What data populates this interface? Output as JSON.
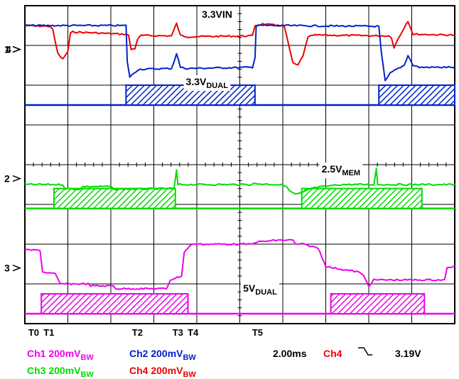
{
  "chart_data": {
    "type": "line",
    "title": "",
    "xlabel": "",
    "ylabel": "",
    "grid": true,
    "timebase": "2.00ms",
    "trigger": {
      "source": "Ch4",
      "slope": "falling",
      "level": "3.19V"
    },
    "divisions": {
      "x": 10,
      "y": 8
    },
    "channels": [
      {
        "id": "Ch1",
        "label": "Ch1",
        "scale": "200mV",
        "bw": "BW",
        "color": "#ee00ee"
      },
      {
        "id": "Ch2",
        "label": "Ch2",
        "scale": "200mV",
        "bw": "BW",
        "color": "#0022cc"
      },
      {
        "id": "Ch3",
        "label": "Ch3",
        "scale": "200mV",
        "bw": "BW",
        "color": "#00dd00"
      },
      {
        "id": "Ch4",
        "label": "Ch4",
        "scale": "200mV",
        "bw": "BW",
        "color": "#ee0000"
      }
    ],
    "ground_markers": [
      {
        "label": "1",
        "color": "#ee0000",
        "div": 1.1
      },
      {
        "label": "4",
        "color": "#0022cc",
        "div": 1.1
      },
      {
        "label": "2",
        "color": "#00aa00",
        "div": 4.35
      },
      {
        "label": "3",
        "color": "#ee00ee",
        "div": 6.6
      }
    ],
    "annotations": [
      {
        "base": "3.3VIN",
        "sub": "",
        "x_div": 7.6,
        "y_div": 0.3
      },
      {
        "base": "3.3V",
        "sub": "DUAL",
        "x_div": 7.2,
        "y_div": 2.0
      },
      {
        "base": "2.5V",
        "sub": "MEM",
        "x_div": 12.5,
        "y_div": 4.2
      },
      {
        "base": "5V",
        "sub": "DUAL",
        "x_div": 9.3,
        "y_div": 7.2
      }
    ],
    "time_markers": [
      {
        "label": "T0",
        "x_div": 0.35
      },
      {
        "label": "T1",
        "x_div": 0.95
      },
      {
        "label": "T2",
        "x_div": 4.45
      },
      {
        "label": "T3",
        "x_div": 6.05
      },
      {
        "label": "T4",
        "x_div": 6.65
      },
      {
        "label": "T5",
        "x_div": 9.2
      }
    ],
    "series": [
      {
        "id": "Ch4",
        "color": "#ee0000",
        "width": 2,
        "points": [
          [
            0,
            0.5
          ],
          [
            1.0,
            0.52
          ],
          [
            1.1,
            0.6
          ],
          [
            1.3,
            1.2
          ],
          [
            1.5,
            1.35
          ],
          [
            1.7,
            1.15
          ],
          [
            1.8,
            0.7
          ],
          [
            1.9,
            0.66
          ],
          [
            4.0,
            0.72
          ],
          [
            4.1,
            0.75
          ],
          [
            4.2,
            1.1
          ],
          [
            4.35,
            1.08
          ],
          [
            4.45,
            0.85
          ],
          [
            4.6,
            0.75
          ],
          [
            5.8,
            0.76
          ],
          [
            5.9,
            0.6
          ],
          [
            6.0,
            0.45
          ],
          [
            6.15,
            0.75
          ],
          [
            6.4,
            0.78
          ],
          [
            9.0,
            0.76
          ],
          [
            9.1,
            0.5
          ],
          [
            9.4,
            0.46
          ],
          [
            10.0,
            0.5
          ],
          [
            10.25,
            0.5
          ],
          [
            10.4,
            0.9
          ],
          [
            10.6,
            1.45
          ],
          [
            10.8,
            1.5
          ],
          [
            11.0,
            1.25
          ],
          [
            11.2,
            0.8
          ],
          [
            11.4,
            0.74
          ],
          [
            14.4,
            0.76
          ],
          [
            14.5,
            0.8
          ],
          [
            14.6,
            1.05
          ],
          [
            14.75,
            0.85
          ],
          [
            15.0,
            0.55
          ],
          [
            15.15,
            0.38
          ],
          [
            15.35,
            0.72
          ],
          [
            15.6,
            0.72
          ],
          [
            17.0,
            0.74
          ]
        ]
      },
      {
        "id": "Ch2",
        "color": "#0022cc",
        "width": 2,
        "points": [
          [
            0,
            0.5
          ],
          [
            4.0,
            0.5
          ],
          [
            4.05,
            1.4
          ],
          [
            4.15,
            1.8
          ],
          [
            4.3,
            1.7
          ],
          [
            4.5,
            1.6
          ],
          [
            5.8,
            1.58
          ],
          [
            5.9,
            1.4
          ],
          [
            6.0,
            1.2
          ],
          [
            6.15,
            1.55
          ],
          [
            6.4,
            1.58
          ],
          [
            9.0,
            1.55
          ],
          [
            9.1,
            1.3
          ],
          [
            9.15,
            0.5
          ],
          [
            10.0,
            0.5
          ],
          [
            14.0,
            0.52
          ],
          [
            14.1,
            1.2
          ],
          [
            14.25,
            1.9
          ],
          [
            14.45,
            1.7
          ],
          [
            14.7,
            1.6
          ],
          [
            15.0,
            1.5
          ],
          [
            15.15,
            1.25
          ],
          [
            15.35,
            1.5
          ],
          [
            15.6,
            1.55
          ],
          [
            17.0,
            1.55
          ]
        ]
      },
      {
        "id": "Ch3",
        "color": "#00dd00",
        "width": 2,
        "points": [
          [
            0,
            4.5
          ],
          [
            1.5,
            4.5
          ],
          [
            1.6,
            4.6
          ],
          [
            2.2,
            4.62
          ],
          [
            2.3,
            4.55
          ],
          [
            3.4,
            4.55
          ],
          [
            3.5,
            4.62
          ],
          [
            5.9,
            4.6
          ],
          [
            6.0,
            4.15
          ],
          [
            6.05,
            4.5
          ],
          [
            8.9,
            4.5
          ],
          [
            9.05,
            4.48
          ],
          [
            10.0,
            4.5
          ],
          [
            10.3,
            4.52
          ],
          [
            10.45,
            4.65
          ],
          [
            10.7,
            4.75
          ],
          [
            11.0,
            4.7
          ],
          [
            11.3,
            4.6
          ],
          [
            11.8,
            4.55
          ],
          [
            12.5,
            4.5
          ],
          [
            13.8,
            4.5
          ],
          [
            13.9,
            4.1
          ],
          [
            13.95,
            4.5
          ],
          [
            17.0,
            4.5
          ]
        ]
      },
      {
        "id": "Ch1",
        "color": "#ee00ee",
        "width": 2,
        "points": [
          [
            0,
            6.15
          ],
          [
            0.6,
            6.15
          ],
          [
            0.7,
            6.7
          ],
          [
            1.2,
            6.75
          ],
          [
            1.4,
            7.0
          ],
          [
            2.5,
            7.0
          ],
          [
            2.6,
            7.05
          ],
          [
            3.5,
            7.05
          ],
          [
            3.6,
            7.12
          ],
          [
            5.6,
            7.12
          ],
          [
            5.75,
            6.9
          ],
          [
            6.2,
            6.8
          ],
          [
            6.3,
            6.2
          ],
          [
            6.6,
            6.0
          ],
          [
            9.0,
            6.0
          ],
          [
            9.1,
            5.95
          ],
          [
            10.0,
            5.9
          ],
          [
            10.6,
            5.9
          ],
          [
            10.7,
            6.0
          ],
          [
            10.8,
            6.0
          ],
          [
            11.0,
            6.0
          ],
          [
            11.6,
            6.1
          ],
          [
            11.9,
            6.55
          ],
          [
            12.2,
            6.6
          ],
          [
            13.2,
            6.7
          ],
          [
            13.4,
            6.8
          ],
          [
            13.6,
            7.05
          ],
          [
            13.8,
            6.9
          ],
          [
            16.6,
            6.9
          ],
          [
            16.7,
            6.6
          ],
          [
            17.0,
            6.55
          ]
        ]
      }
    ],
    "gates": [
      {
        "id": "Ch2",
        "color": "#0022cc",
        "level_div": 2.5,
        "height_div": 0.5,
        "segments": [
          [
            4.0,
            9.1
          ],
          [
            14.0,
            17.0
          ]
        ]
      },
      {
        "id": "Ch3",
        "color": "#00dd00",
        "level_div": 5.1,
        "height_div": 0.5,
        "segments": [
          [
            1.15,
            5.95
          ],
          [
            10.95,
            15.7
          ]
        ]
      },
      {
        "id": "Ch1",
        "color": "#ee00ee",
        "level_div": 7.75,
        "height_div": 0.5,
        "segments": [
          [
            0.65,
            6.45
          ],
          [
            12.1,
            15.8
          ]
        ]
      }
    ]
  },
  "labels": {
    "ch1": "Ch1 200mV",
    "ch1_bw": "BW",
    "ch2": "Ch2 200mV",
    "ch2_bw": "BW",
    "ch3": "Ch3 200mV",
    "ch3_bw": "BW",
    "ch4": "Ch4 200mV",
    "ch4_bw": "BW",
    "timebase": "2.00ms",
    "trig_src": "Ch4",
    "trig_level": "3.19V"
  }
}
